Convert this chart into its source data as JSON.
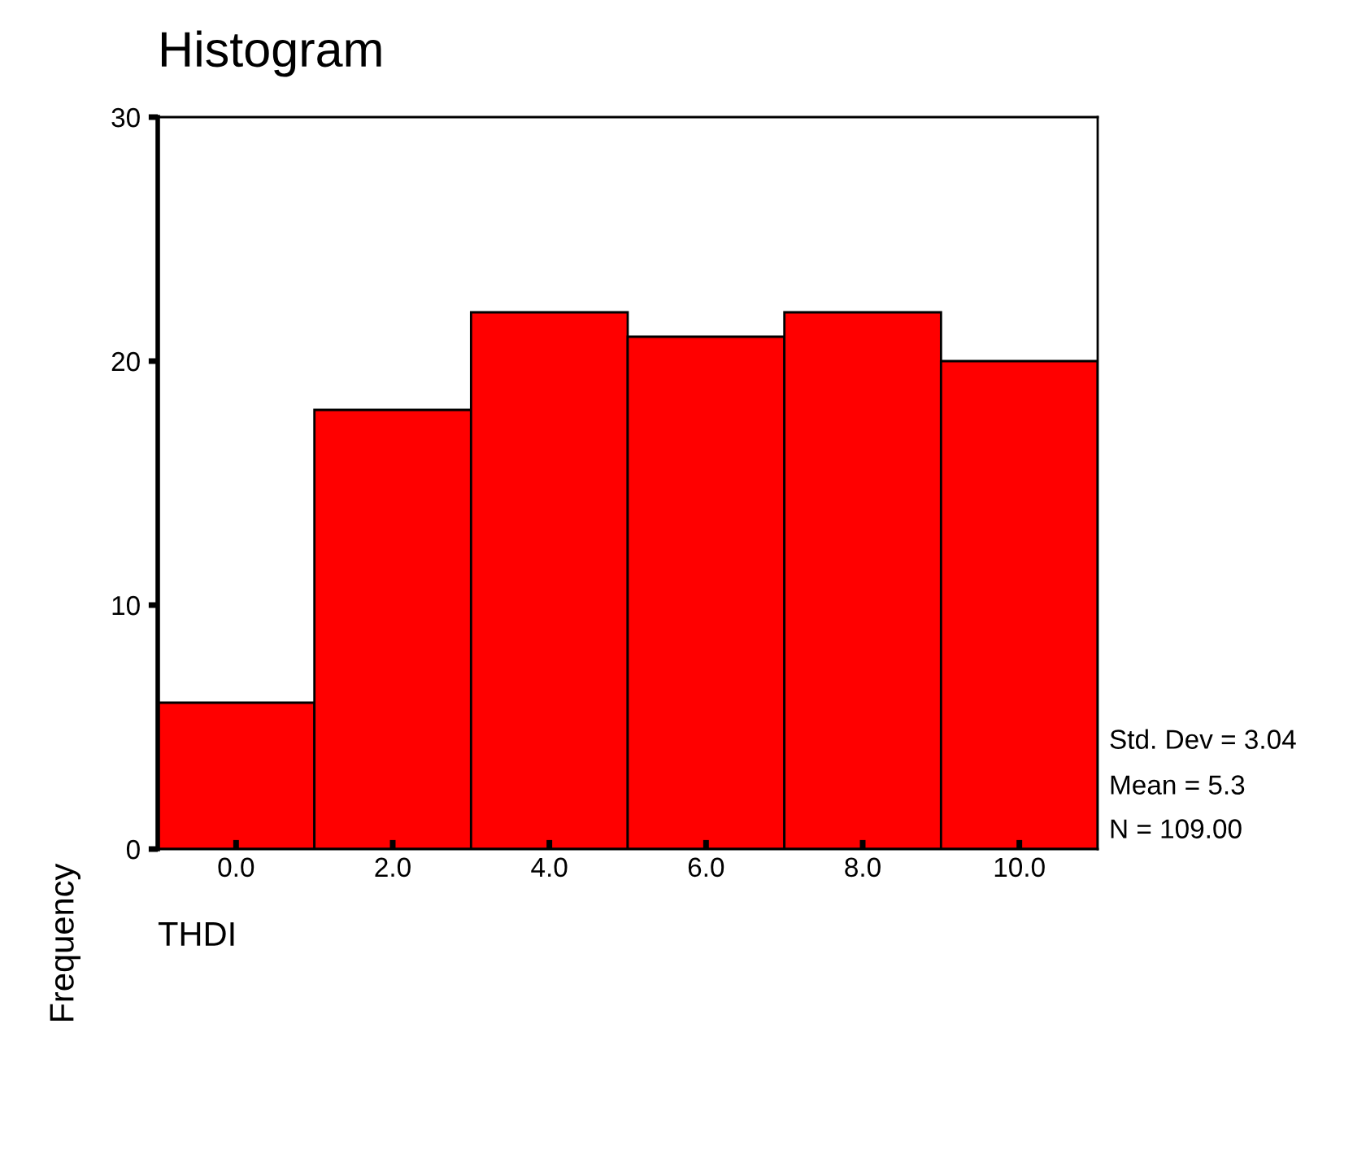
{
  "chart_data": {
    "type": "histogram",
    "title": "Histogram",
    "xlabel": "THDI",
    "ylabel": "Frequency",
    "bins": [
      -1,
      1,
      3,
      5,
      7,
      9,
      11
    ],
    "values": [
      6,
      18,
      22,
      21,
      22,
      20
    ],
    "color": "#ff0000",
    "xlim": [
      -1,
      11
    ],
    "xticks": [
      {
        "value": 0,
        "label": "0.0"
      },
      {
        "value": 2,
        "label": "2.0"
      },
      {
        "value": 4,
        "label": "4.0"
      },
      {
        "value": 6,
        "label": "6.0"
      },
      {
        "value": 8,
        "label": "8.0"
      },
      {
        "value": 10,
        "label": "10.0"
      }
    ],
    "ylim": [
      0,
      30
    ],
    "yticks": [
      0,
      10,
      20,
      30
    ],
    "annotations": [
      "Std. Dev = 3.04",
      "Mean = 5.3",
      "N = 109.00"
    ],
    "grid": false
  }
}
